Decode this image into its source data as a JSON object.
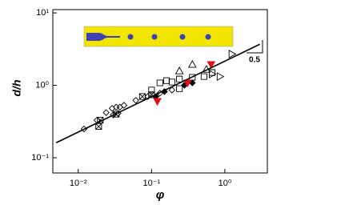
{
  "chart_data": {
    "type": "scatter",
    "xlabel": "φ",
    "ylabel": "d/h",
    "annotation": "0.5",
    "xscale": "log",
    "yscale": "log",
    "xlim": [
      0.0045,
      3.8
    ],
    "ylim": [
      0.0616,
      11.1
    ],
    "xticks": [
      {
        "value": 0.01,
        "label": "10⁻²"
      },
      {
        "value": 0.1,
        "label": "10⁻¹"
      },
      {
        "value": 1,
        "label": "10⁰"
      }
    ],
    "yticks": [
      {
        "value": 0.1,
        "label": "10⁻¹"
      },
      {
        "value": 1,
        "label": "10⁰"
      },
      {
        "value": 10,
        "label": "10¹"
      }
    ],
    "series": [
      {
        "marker": "diamond",
        "color": "#000000",
        "filled": false,
        "x": [
          0.012,
          0.018,
          0.024,
          0.029,
          0.033,
          0.037,
          0.042,
          0.03,
          0.035,
          0.061,
          0.089,
          0.13,
          0.19
        ],
        "values": [
          0.25,
          0.33,
          0.42,
          0.48,
          0.5,
          0.5,
          0.53,
          0.39,
          0.41,
          0.62,
          0.7,
          0.78,
          0.86
        ]
      },
      {
        "marker": "crossed-square",
        "color": "#000000",
        "filled": false,
        "x": [
          0.02,
          0.019,
          0.033,
          0.075,
          0.1
        ],
        "values": [
          0.33,
          0.27,
          0.4,
          0.7,
          0.74
        ]
      },
      {
        "marker": "square",
        "color": "#000000",
        "filled": false,
        "x": [
          0.1,
          0.13,
          0.16,
          0.19,
          0.24,
          0.36,
          0.52,
          0.67,
          0.24
        ],
        "values": [
          0.86,
          1.08,
          1.16,
          1.11,
          1.22,
          1.29,
          1.32,
          1.5,
          0.9
        ]
      },
      {
        "marker": "triangle-up",
        "color": "#000000",
        "filled": false,
        "x": [
          0.36,
          0.24,
          0.56
        ],
        "values": [
          1.94,
          1.58,
          1.66
        ]
      },
      {
        "marker": "triangle-right",
        "color": "#000000",
        "filled": false,
        "x": [
          1.25,
          0.67,
          0.86
        ],
        "values": [
          2.7,
          1.43,
          1.32
        ]
      },
      {
        "marker": "diamond",
        "color": "#000000",
        "filled": true,
        "x": [
          0.115,
          0.15,
          0.28,
          0.36
        ],
        "values": [
          0.7,
          0.82,
          1.0,
          1.08
        ]
      },
      {
        "marker": "triangle-down",
        "color": "#e0101a",
        "filled": true,
        "x": [
          0.12,
          0.31,
          0.65
        ],
        "values": [
          0.6,
          1.08,
          1.94
        ]
      },
      {
        "marker": "line",
        "color": "#000000",
        "filled": false,
        "x": [
          0.005,
          3
        ],
        "values": [
          0.161,
          3.69
        ]
      }
    ]
  }
}
